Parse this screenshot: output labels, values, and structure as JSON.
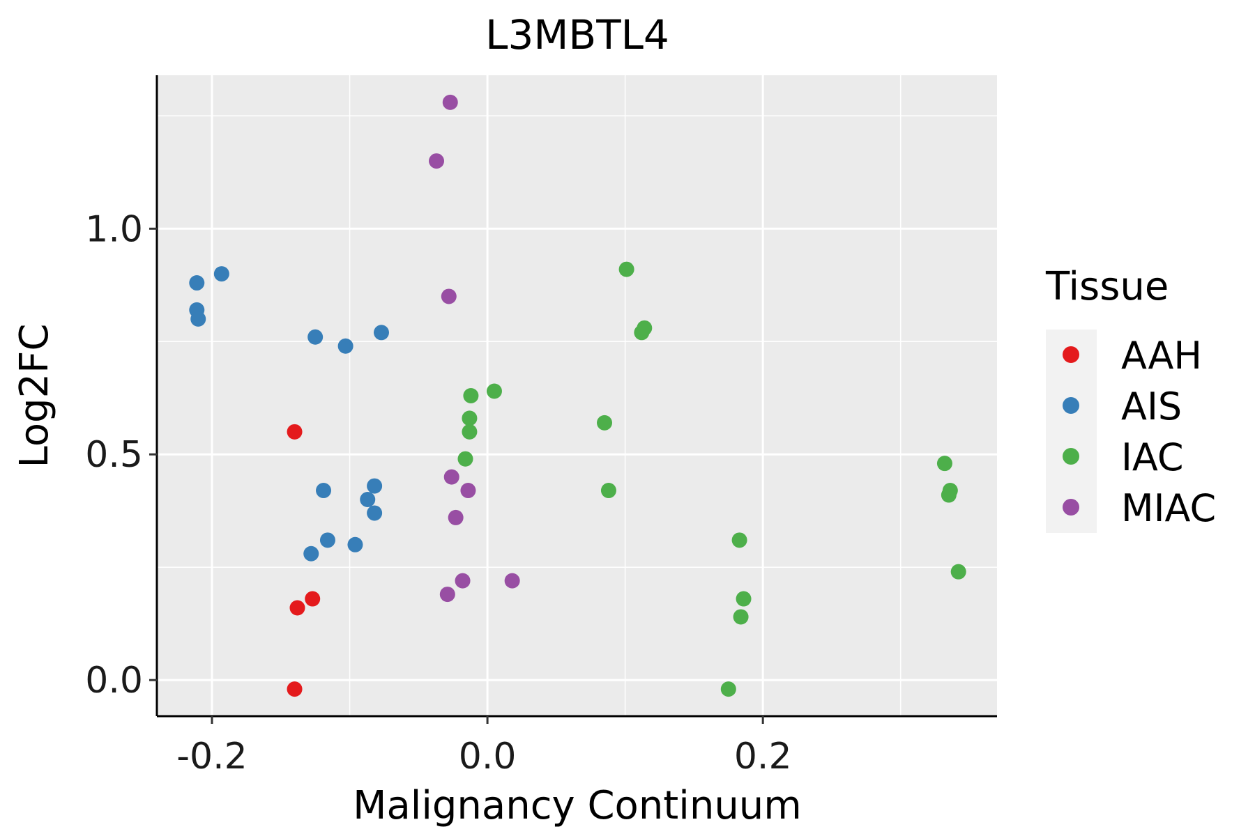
{
  "chart_data": {
    "type": "scatter",
    "title": "L3MBTL4",
    "xlabel": "Malignancy Continuum",
    "ylabel": "Log2FC",
    "xlim": [
      -0.24,
      0.37
    ],
    "ylim": [
      -0.08,
      1.34
    ],
    "x_ticks": [
      -0.2,
      0.0,
      0.2
    ],
    "x_tick_labels": [
      "-0.2",
      "0.0",
      "0.2"
    ],
    "y_ticks": [
      0.0,
      0.5,
      1.0
    ],
    "y_tick_labels": [
      "0.0",
      "0.5",
      "1.0"
    ],
    "x_minor": [
      -0.1,
      0.1,
      0.3
    ],
    "y_minor": [
      0.25,
      0.75,
      1.25
    ],
    "grid": true,
    "legend": {
      "title": "Tissue",
      "position": "right"
    },
    "series": [
      {
        "name": "AAH",
        "color": "#E41A1C",
        "points": [
          [
            -0.14,
            0.55
          ],
          [
            -0.138,
            0.16
          ],
          [
            -0.127,
            0.18
          ],
          [
            -0.14,
            -0.02
          ]
        ]
      },
      {
        "name": "AIS",
        "color": "#377EB8",
        "points": [
          [
            -0.211,
            0.88
          ],
          [
            -0.193,
            0.9
          ],
          [
            -0.211,
            0.82
          ],
          [
            -0.21,
            0.8
          ],
          [
            -0.125,
            0.76
          ],
          [
            -0.103,
            0.74
          ],
          [
            -0.077,
            0.77
          ],
          [
            -0.119,
            0.42
          ],
          [
            -0.087,
            0.4
          ],
          [
            -0.082,
            0.43
          ],
          [
            -0.082,
            0.37
          ],
          [
            -0.116,
            0.31
          ],
          [
            -0.128,
            0.28
          ],
          [
            -0.096,
            0.3
          ]
        ]
      },
      {
        "name": "IAC",
        "color": "#4DAF4A",
        "points": [
          [
            0.101,
            0.91
          ],
          [
            0.112,
            0.77
          ],
          [
            0.114,
            0.78
          ],
          [
            0.005,
            0.64
          ],
          [
            -0.012,
            0.63
          ],
          [
            -0.013,
            0.58
          ],
          [
            -0.013,
            0.55
          ],
          [
            -0.016,
            0.49
          ],
          [
            0.085,
            0.57
          ],
          [
            0.088,
            0.42
          ],
          [
            0.332,
            0.48
          ],
          [
            0.336,
            0.42
          ],
          [
            0.335,
            0.41
          ],
          [
            0.342,
            0.24
          ],
          [
            0.183,
            0.31
          ],
          [
            0.186,
            0.18
          ],
          [
            0.184,
            0.14
          ],
          [
            0.175,
            -0.02
          ]
        ]
      },
      {
        "name": "MIAC",
        "color": "#984EA3",
        "points": [
          [
            -0.027,
            1.28
          ],
          [
            -0.037,
            1.15
          ],
          [
            -0.028,
            0.85
          ],
          [
            -0.026,
            0.45
          ],
          [
            -0.014,
            0.42
          ],
          [
            -0.023,
            0.36
          ],
          [
            -0.018,
            0.22
          ],
          [
            0.018,
            0.22
          ],
          [
            -0.029,
            0.19
          ]
        ]
      }
    ]
  }
}
